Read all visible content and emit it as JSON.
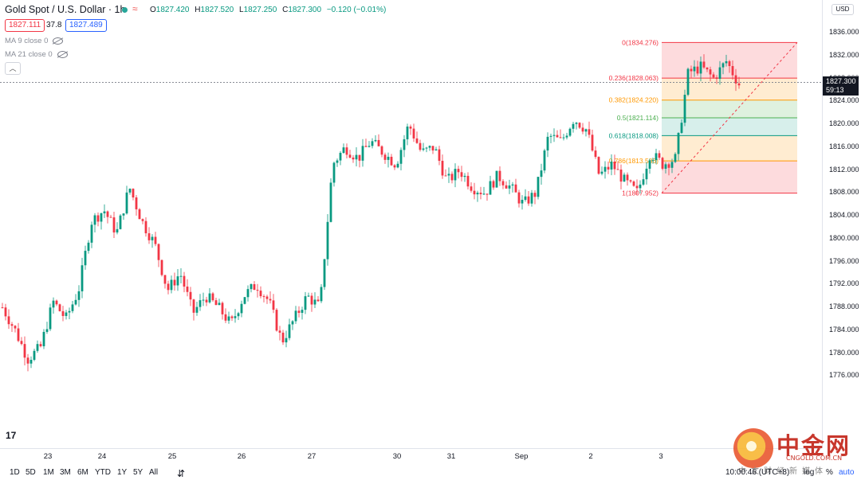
{
  "header": {
    "symbol": "Gold Spot / U.S. Dollar · 1h",
    "ohlc": {
      "open_label": "O",
      "open": "1827.420",
      "high_label": "H",
      "high": "1827.520",
      "low_label": "L",
      "low": "1827.250",
      "close_label": "C",
      "close": "1827.300",
      "change": "−0.120 (−0.01%)"
    },
    "sell_price": "1827.111",
    "spread": "37.8",
    "buy_price": "1827.489",
    "indicators": [
      {
        "label": "MA 9 close 0"
      },
      {
        "label": "MA 21 close 0"
      }
    ]
  },
  "y_axis": {
    "currency": "USD",
    "ticks": [
      "1836.000",
      "1832.000",
      "1828.000",
      "1824.000",
      "1820.000",
      "1816.000",
      "1812.000",
      "1808.000",
      "1804.000",
      "1800.000",
      "1796.000",
      "1792.000",
      "1788.000",
      "1784.000",
      "1780.000",
      "1776.000"
    ],
    "current_price": "1827.300",
    "countdown": "59:13"
  },
  "x_axis": {
    "labels": [
      "23",
      "24",
      "25",
      "26",
      "27",
      "30",
      "31",
      "Sep",
      "2",
      "3"
    ]
  },
  "fib": {
    "levels": [
      {
        "ratio": 0,
        "label": "0(1834.276)",
        "color": "#f23645"
      },
      {
        "ratio": 0.236,
        "label": "0.236(1828.063)",
        "color": "#f23645"
      },
      {
        "ratio": 0.382,
        "label": "0.382(1824.220)",
        "color": "#ff9800"
      },
      {
        "ratio": 0.5,
        "label": "0.5(1821.114)",
        "color": "#4caf50"
      },
      {
        "ratio": 0.618,
        "label": "0.618(1818.008)",
        "color": "#089981"
      },
      {
        "ratio": 0.786,
        "label": "0.786(1813.586)",
        "color": "#ff9800"
      },
      {
        "ratio": 1,
        "label": "1(1807.952)",
        "color": "#f23645"
      }
    ],
    "high": 1834.276,
    "low": 1807.952
  },
  "colors": {
    "up": "#089981",
    "down": "#f23645",
    "fib_red": "#f23645",
    "fib_orange": "#ff9800",
    "fib_green": "#4caf50"
  },
  "footer": {
    "timeframes": [
      "1D",
      "5D",
      "1M",
      "3M",
      "6M",
      "YTD",
      "1Y",
      "5Y",
      "All"
    ],
    "clock": "10:00:46 (UTC+8)",
    "percent": "%",
    "log": "log",
    "auto": "auto"
  },
  "watermark": {
    "cn": "中金网",
    "site": "CNGOLD.COM.CN",
    "sub": "中文财经新媒体"
  },
  "logo_icon": "tradingview-logo-icon",
  "chart_data": {
    "type": "candlestick",
    "title": "Gold Spot / U.S. Dollar · 1h",
    "ylim": [
      1775,
      1839
    ],
    "y_ticks": [
      1836,
      1832,
      1828,
      1824,
      1820,
      1816,
      1812,
      1808,
      1804,
      1800,
      1796,
      1792,
      1788,
      1784,
      1780,
      1776
    ],
    "x_labels": [
      "23",
      "24",
      "25",
      "26",
      "27",
      "30",
      "31",
      "Sep",
      "2",
      "3"
    ],
    "path": [
      1788,
      1784,
      1779,
      1781,
      1789,
      1786,
      1791,
      1803,
      1805,
      1801,
      1809,
      1803,
      1799,
      1791,
      1794,
      1787,
      1790,
      1788,
      1785,
      1790,
      1792,
      1789,
      1782,
      1786,
      1790,
      1788,
      1813,
      1816,
      1814,
      1817,
      1815,
      1813,
      1820,
      1815,
      1816,
      1810,
      1812,
      1809,
      1808,
      1811,
      1809,
      1806,
      1808,
      1818,
      1817,
      1821,
      1819,
      1811,
      1813,
      1810,
      1808,
      1815,
      1813,
      1814,
      1829,
      1830,
      1828,
      1831,
      1827
    ],
    "last_close": 1827.3
  }
}
